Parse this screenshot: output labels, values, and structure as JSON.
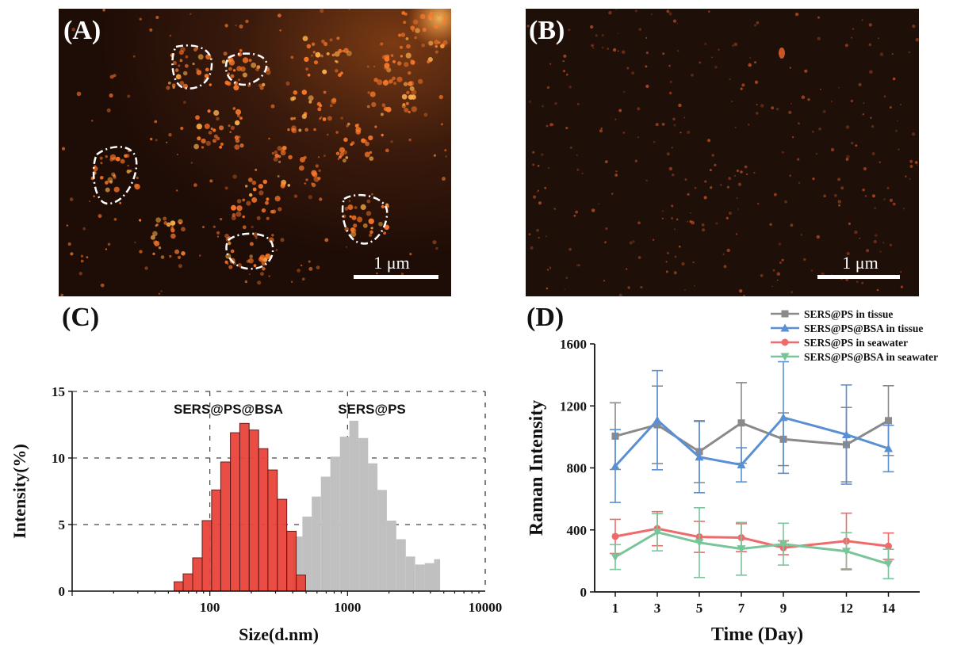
{
  "panels": {
    "a": {
      "label": "(A)",
      "scale_bar": "1 μm",
      "colors": {
        "background": "#2a1208",
        "particle": "#ff7a2a",
        "bright": "#ffb24a"
      }
    },
    "b": {
      "label": "(B)",
      "scale_bar": "1 μm",
      "colors": {
        "background": "#1c0e08",
        "particle": "#d0562a"
      }
    },
    "c": {
      "label": "(C)"
    },
    "d": {
      "label": "(D)"
    }
  },
  "chart_data": [
    {
      "type": "bar",
      "panel": "C",
      "xlabel": "Size(d.nm)",
      "ylabel": "Intensity(%)",
      "xscale": "log",
      "xlim": [
        10,
        10000
      ],
      "ylim": [
        0,
        15
      ],
      "xticks": [
        100,
        1000,
        10000
      ],
      "yticks": [
        0,
        5,
        10,
        15
      ],
      "grid": "dashed",
      "annotations": [
        "SERS@PS@BSA",
        "SERS@PS"
      ],
      "series": [
        {
          "name": "SERS@PS@BSA",
          "color": "#e8443a",
          "bins": [
            [
              55,
              64,
              0.7
            ],
            [
              64,
              75,
              1.3
            ],
            [
              75,
              88,
              2.5
            ],
            [
              88,
              103,
              5.3
            ],
            [
              103,
              120,
              7.6
            ],
            [
              120,
              141,
              9.7
            ],
            [
              141,
              165,
              11.9
            ],
            [
              165,
              193,
              12.6
            ],
            [
              193,
              226,
              12.1
            ],
            [
              226,
              264,
              10.7
            ],
            [
              264,
              309,
              9.1
            ],
            [
              309,
              362,
              6.9
            ],
            [
              362,
              424,
              4.5
            ],
            [
              424,
              496,
              1.2
            ]
          ]
        },
        {
          "name": "SERS@PS",
          "color": "#c0c0c0",
          "bins": [
            [
              400,
              470,
              4.1
            ],
            [
              470,
              550,
              5.6
            ],
            [
              550,
              640,
              7.1
            ],
            [
              640,
              750,
              8.6
            ],
            [
              750,
              880,
              10.1
            ],
            [
              880,
              1030,
              11.6
            ],
            [
              1030,
              1200,
              12.8
            ],
            [
              1200,
              1410,
              11.5
            ],
            [
              1410,
              1650,
              9.6
            ],
            [
              1650,
              1930,
              7.6
            ],
            [
              1930,
              2260,
              5.3
            ],
            [
              2260,
              2650,
              3.9
            ],
            [
              2650,
              3100,
              2.6
            ],
            [
              3100,
              3630,
              2.0
            ],
            [
              3630,
              4250,
              2.1
            ],
            [
              4250,
              4700,
              2.4
            ]
          ]
        }
      ]
    },
    {
      "type": "line",
      "panel": "D",
      "xlabel": "Time (Day)",
      "ylabel": "Raman Intensity",
      "ylim": [
        0,
        1600
      ],
      "yticks": [
        0,
        400,
        800,
        1200,
        1600
      ],
      "x": [
        1,
        3,
        5,
        7,
        9,
        12,
        14
      ],
      "legend": "top-right",
      "series": [
        {
          "name": "SERS@PS in tissue",
          "color": "#8a8a8a",
          "marker": "square",
          "values": [
            1005,
            1078,
            905,
            1090,
            985,
            950,
            1105
          ],
          "errors": [
            215,
            250,
            200,
            260,
            170,
            240,
            225
          ]
        },
        {
          "name": "SERS@PS@BSA in tissue",
          "color": "#5b8fd4",
          "marker": "triangle",
          "values": [
            812,
            1108,
            870,
            820,
            1125,
            1015,
            925
          ],
          "errors": [
            235,
            320,
            230,
            110,
            360,
            320,
            150
          ]
        },
        {
          "name": "SERS@PS in seawater",
          "color": "#ef6a6a",
          "marker": "circle",
          "values": [
            358,
            408,
            355,
            350,
            285,
            328,
            295
          ],
          "errors": [
            110,
            110,
            100,
            90,
            45,
            180,
            85
          ]
        },
        {
          "name": "SERS@PS@BSA in seawater",
          "color": "#7ac49a",
          "marker": "triangle-down",
          "values": [
            225,
            385,
            318,
            278,
            308,
            262,
            180
          ],
          "errors": [
            80,
            120,
            225,
            170,
            135,
            120,
            95
          ]
        }
      ]
    }
  ]
}
